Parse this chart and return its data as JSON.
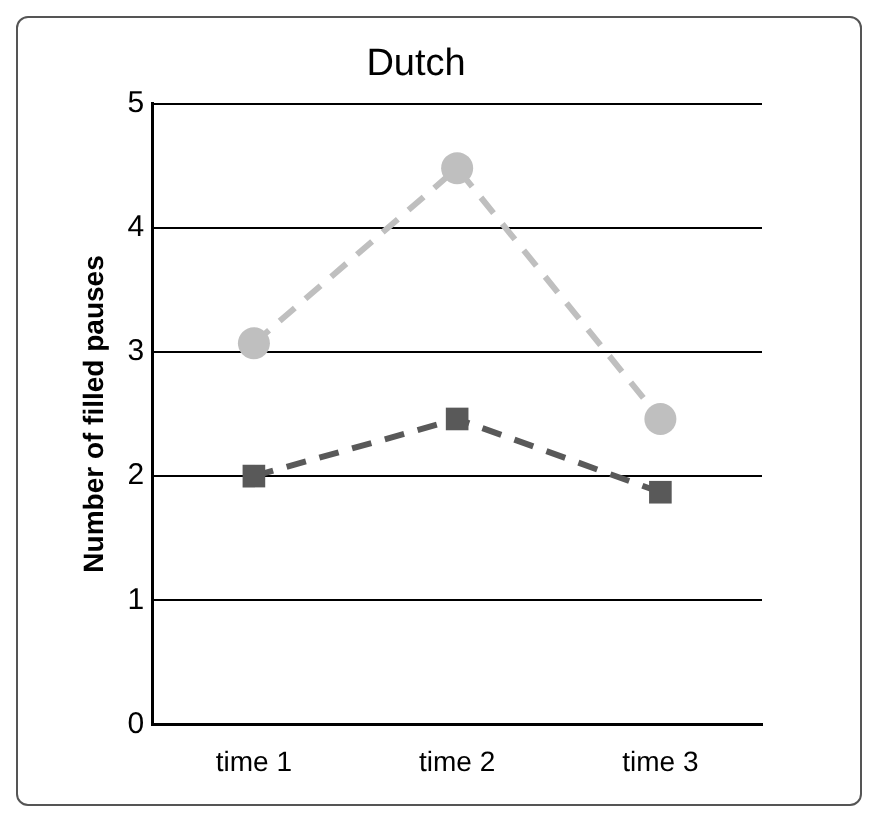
{
  "chart_data": {
    "type": "line",
    "title": "Dutch",
    "ylabel": "Number of filled pauses",
    "categories": [
      "time 1",
      "time 2",
      "time 3"
    ],
    "series": [
      {
        "color": "#bfbfbf",
        "values": [
          3.07,
          4.48,
          2.46
        ],
        "marker": "circle"
      },
      {
        "color": "#595959",
        "values": [
          2.0,
          2.46,
          1.87
        ],
        "marker": "square"
      }
    ],
    "ylim": [
      0,
      5
    ],
    "yticks": [
      0,
      1,
      2,
      3,
      4,
      5
    ],
    "grid": "y",
    "legend": false,
    "line_style": "dashed"
  }
}
